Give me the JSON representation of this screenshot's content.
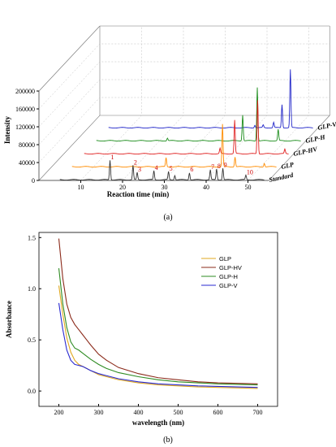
{
  "chart_data": [
    {
      "type": "line",
      "panel": "(a)",
      "ylabel": "Intensity",
      "xlabel": "Reaction time (min)",
      "yticks": [
        "0",
        "40000",
        "80000",
        "120000",
        "160000",
        "200000"
      ],
      "xticks": [
        "10",
        "20",
        "30",
        "40",
        "50"
      ],
      "xlim": [
        0,
        55
      ],
      "ylim": [
        0,
        200000
      ],
      "series": [
        {
          "name": "Standard",
          "color": "#333333",
          "peaks": [
            [
              17.0,
              44000
            ],
            [
              22.5,
              32000
            ],
            [
              23.5,
              16000
            ],
            [
              27.5,
              20000
            ],
            [
              31.0,
              18000
            ],
            [
              32.5,
              10000
            ],
            [
              36.0,
              16000
            ],
            [
              41.0,
              22000
            ],
            [
              42.5,
              24000
            ],
            [
              44.0,
              26000
            ],
            [
              49.5,
              10000
            ]
          ]
        },
        {
          "name": "GLP",
          "color": "#ff8c00",
          "peaks": [
            [
              27.5,
              20000
            ],
            [
              41.0,
              95000
            ],
            [
              44.0,
              22000
            ],
            [
              51.0,
              8000
            ]
          ]
        },
        {
          "name": "GLP-HV",
          "color": "#e02020",
          "peaks": [
            [
              37.5,
              12000
            ],
            [
              41.0,
              75000
            ],
            [
              46.5,
              120000
            ],
            [
              53.0,
              10000
            ]
          ]
        },
        {
          "name": "GLP-H",
          "color": "#1a8c1a",
          "peaks": [
            [
              22.0,
              6000
            ],
            [
              40.0,
              58000
            ],
            [
              43.5,
              120000
            ],
            [
              48.5,
              25000
            ]
          ]
        },
        {
          "name": "GLP-V",
          "color": "#1f24c8",
          "peaks": [
            [
              40.0,
              6000
            ],
            [
              42.0,
              6000
            ],
            [
              44.5,
              12000
            ],
            [
              46.5,
              52000
            ],
            [
              48.5,
              130000
            ],
            [
              55.0,
              14000
            ]
          ]
        }
      ],
      "peak_labels": [
        "1",
        "2",
        "3",
        "4",
        "5",
        "6",
        "7",
        "8",
        "9",
        "10"
      ]
    },
    {
      "type": "line",
      "panel": "(b)",
      "ylabel": "Absorbance",
      "xlabel": "wavelength (nm)",
      "xticks": [
        "200",
        "300",
        "400",
        "500",
        "600",
        "700"
      ],
      "yticks": [
        "0.0",
        "0.5",
        "1.0",
        "1.5"
      ],
      "xlim": [
        150,
        750
      ],
      "ylim": [
        -0.15,
        1.55
      ],
      "legend_position": "top-right",
      "x": [
        200,
        210,
        220,
        230,
        240,
        250,
        260,
        270,
        280,
        300,
        320,
        350,
        400,
        450,
        500,
        550,
        600,
        650,
        700
      ],
      "series": [
        {
          "name": "GLP",
          "color": "#e0a820",
          "values": [
            1.03,
            0.75,
            0.52,
            0.38,
            0.3,
            0.26,
            0.24,
            0.22,
            0.2,
            0.16,
            0.14,
            0.11,
            0.08,
            0.06,
            0.05,
            0.04,
            0.035,
            0.03,
            0.025
          ]
        },
        {
          "name": "GLP-HV",
          "color": "#8b2a1a",
          "values": [
            1.49,
            1.1,
            0.85,
            0.72,
            0.65,
            0.6,
            0.55,
            0.5,
            0.45,
            0.36,
            0.3,
            0.23,
            0.17,
            0.13,
            0.11,
            0.09,
            0.08,
            0.075,
            0.07
          ]
        },
        {
          "name": "GLP-H",
          "color": "#2e8b22",
          "values": [
            1.2,
            0.85,
            0.62,
            0.48,
            0.42,
            0.4,
            0.37,
            0.34,
            0.31,
            0.26,
            0.22,
            0.18,
            0.14,
            0.11,
            0.09,
            0.08,
            0.07,
            0.065,
            0.06
          ]
        },
        {
          "name": "GLP-V",
          "color": "#2a2ad0",
          "values": [
            0.86,
            0.6,
            0.4,
            0.3,
            0.26,
            0.25,
            0.24,
            0.22,
            0.2,
            0.17,
            0.15,
            0.12,
            0.09,
            0.07,
            0.06,
            0.05,
            0.045,
            0.04,
            0.035
          ]
        }
      ]
    }
  ]
}
